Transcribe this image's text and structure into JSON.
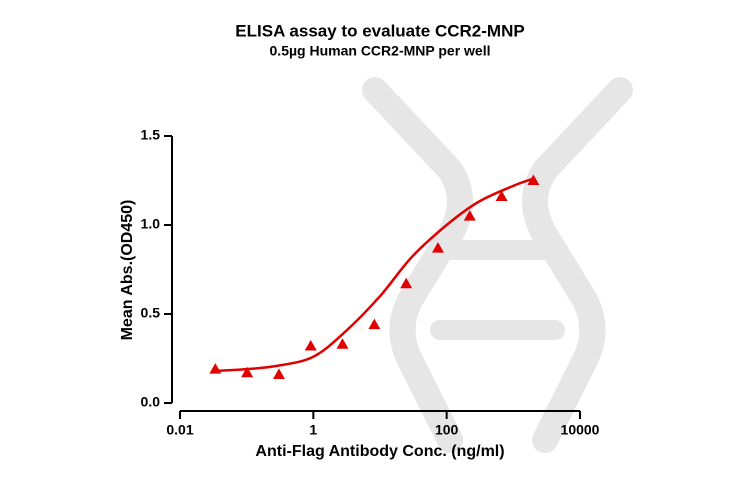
{
  "chart_data": {
    "type": "scatter",
    "title": "ELISA assay to evaluate CCR2-MNP",
    "subtitle": "0.5µg Human CCR2-MNP per well",
    "xlabel": "Anti-Flag Antibody Conc. (ng/ml)",
    "ylabel": "Mean Abs.(OD450)",
    "xscale": "log",
    "xlim": [
      0.01,
      10000
    ],
    "xticks": [
      0.01,
      1,
      100,
      10000
    ],
    "ylim": [
      0,
      1.5
    ],
    "yticks": [
      {
        "value": 0,
        "label": "0.0"
      },
      0.5,
      {
        "value": 1,
        "label": "1.0"
      },
      {
        "value": 1.5,
        "label": "1.5"
      }
    ],
    "grid": false,
    "series": [
      {
        "color": "#e00000",
        "marker": "triangle",
        "x": [
          0.0339,
          0.1016,
          0.305,
          0.914,
          2.74,
          8.23,
          24.69,
          74.07,
          222.2,
          666.7,
          2000
        ],
        "values": [
          0.19,
          0.17,
          0.16,
          0.32,
          0.33,
          0.44,
          0.67,
          0.87,
          1.05,
          1.16,
          1.25
        ]
      }
    ],
    "fit_curve": {
      "color": "#e00000",
      "x": [
        0.0339,
        0.1,
        0.3,
        1,
        3,
        10,
        30,
        100,
        300,
        1000,
        2000
      ],
      "values": [
        0.18,
        0.19,
        0.21,
        0.26,
        0.4,
        0.6,
        0.82,
        1.0,
        1.13,
        1.22,
        1.26
      ]
    }
  }
}
